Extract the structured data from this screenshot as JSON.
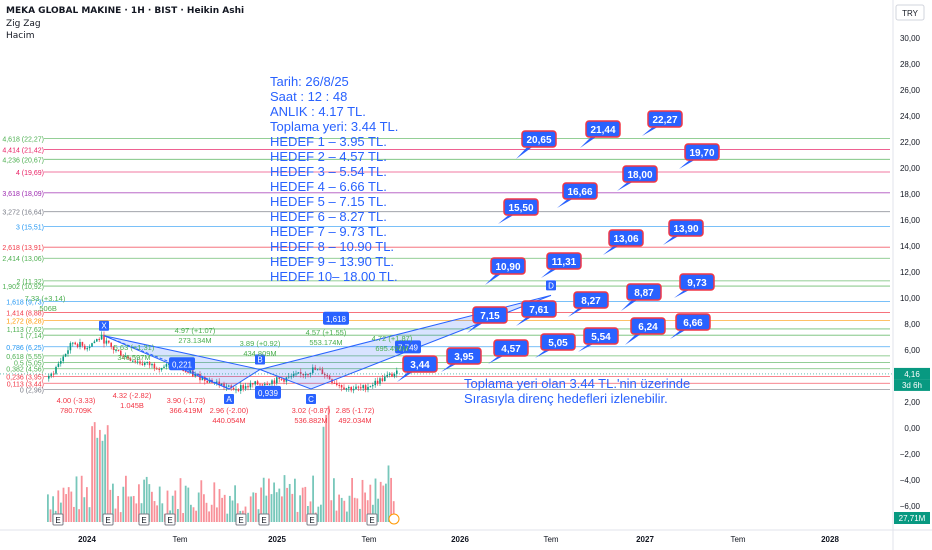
{
  "header": {
    "title": "MEKA GLOBAL MAKINE · 1H · BIST · Heikin Ashi",
    "indicator1": "Zig Zag",
    "indicator2": "Hacim",
    "currency": "TRY"
  },
  "info": {
    "lines": [
      "Tarih:    26/8/25",
      "Saat :      12 : 48",
      "ANLIK :  4.17 TL.",
      "Toplama yeri: 3.44 TL.",
      "HEDEF  1 – 3.95 TL.",
      "HEDEF  2 – 4.57 TL.",
      "HEDEF  3 – 5.54 TL.",
      "HEDEF  4 – 6.66 TL.",
      "HEDEF  5 – 7.15 TL.",
      "HEDEF  6 – 8.27 TL.",
      "HEDEF  7 – 9.73 TL.",
      "HEDEF  8 – 10.90 TL.",
      "HEDEF  9 – 13.90 TL.",
      "HEDEF 10– 18.00 TL."
    ],
    "note_line1": "Toplama yeri olan 3.44 TL.'nin üzerinde",
    "note_line2": "Sırasıyla direnç hedefleri izlenebilir."
  },
  "chart_data": {
    "type": "candlestick",
    "price_axis": {
      "ticks": [
        "30,00",
        "28,00",
        "26,00",
        "24,00",
        "22,00",
        "20,00",
        "18,00",
        "16,00",
        "14,00",
        "12,00",
        "10,00",
        "8,00",
        "6,00",
        "4,00",
        "2,00",
        "0,00",
        "−2,00",
        "−4,00",
        "−6,00"
      ],
      "values": [
        30,
        28,
        26,
        24,
        22,
        20,
        18,
        16,
        14,
        12,
        10,
        8,
        6,
        4,
        2,
        0,
        -2,
        -4,
        -6
      ],
      "current_price": "4,16",
      "countdown": "3d 6h",
      "volume_label": "27,71M"
    },
    "time_axis": {
      "labels": [
        "2024",
        "Tem",
        "2025",
        "Tem",
        "2026",
        "Tem",
        "2027",
        "Tem",
        "2028"
      ]
    },
    "fib_levels": [
      {
        "label": "4,618 (22,27)",
        "value": 22.27,
        "color": "#4caf50"
      },
      {
        "label": "4,414 (21,42)",
        "value": 21.42,
        "color": "#e91e63"
      },
      {
        "label": "4,236 (20,67)",
        "value": 20.67,
        "color": "#4caf50"
      },
      {
        "label": "4 (19,69)",
        "value": 19.69,
        "color": "#e91e63"
      },
      {
        "label": "3,618 (18,09)",
        "value": 18.09,
        "color": "#9c27b0"
      },
      {
        "label": "3,272 (16,64)",
        "value": 16.64,
        "color": "#787b86"
      },
      {
        "label": "3 (15,51)",
        "value": 15.51,
        "color": "#2196f3"
      },
      {
        "label": "2,618 (13,91)",
        "value": 13.91,
        "color": "#f23645"
      },
      {
        "label": "2,414 (13,06)",
        "value": 13.06,
        "color": "#4caf50"
      },
      {
        "label": "2 (11,32)",
        "value": 11.32,
        "color": "#4caf50"
      },
      {
        "label": "1,902 (10,92)",
        "value": 10.92,
        "color": "#4caf50"
      },
      {
        "label": "1,618 (9,73)",
        "value": 9.73,
        "color": "#2196f3"
      },
      {
        "label": "1,414 (8,88)",
        "value": 8.88,
        "color": "#f23645"
      },
      {
        "label": "1,272 (8,28)",
        "value": 8.28,
        "color": "#ff9800"
      },
      {
        "label": "1,113 (7,62)",
        "value": 7.62,
        "color": "#4caf50"
      },
      {
        "label": "1 (7,14)",
        "value": 7.14,
        "color": "#4caf50"
      },
      {
        "label": "0,786 (6,25)",
        "value": 6.25,
        "color": "#2196f3"
      },
      {
        "label": "0,618 (5,55)",
        "value": 5.55,
        "color": "#4caf50"
      },
      {
        "label": "0,5 (5,05)",
        "value": 5.05,
        "color": "#4caf50"
      },
      {
        "label": "0,382 (4,56)",
        "value": 4.56,
        "color": "#4caf50"
      },
      {
        "label": "0,236 (3,95)",
        "value": 3.95,
        "color": "#f23645"
      },
      {
        "label": "0,113 (3,44)",
        "value": 3.44,
        "color": "#f23645"
      },
      {
        "label": "0 (2,96)",
        "value": 2.96,
        "color": "#787b86"
      }
    ],
    "target_tags": [
      "3,44",
      "3,95",
      "4,57",
      "5,05",
      "5,54",
      "6,24",
      "6,66",
      "7,15",
      "7,61",
      "8,27",
      "8,87",
      "9,73",
      "10,90",
      "11,31",
      "13,06",
      "13,90",
      "15,50",
      "16,66",
      "18,00",
      "19,70",
      "20,65",
      "21,44",
      "22,27"
    ],
    "pattern_labels": [
      "X",
      "A",
      "B",
      "C",
      "D"
    ],
    "pattern_values": [
      "0,221",
      "0,939",
      "1,618",
      "7,749"
    ],
    "zigzag_labels": [
      {
        "line1": "4.00 (-3.33)",
        "line2": "780.709K",
        "color": "#f23645"
      },
      {
        "line1": "4.32 (-2.82)",
        "line2": "1.045B",
        "color": "#f23645"
      },
      {
        "line1": "3.90 (-1.73)",
        "line2": "366.419M",
        "color": "#f23645"
      },
      {
        "line1": "2.96 (-2.00)",
        "line2": "440.054M",
        "color": "#f23645"
      },
      {
        "line1": "3.02 (-0.87)",
        "line2": "536.882M",
        "color": "#f23645"
      },
      {
        "line1": "2.85 (-1.72)",
        "line2": "492.034M",
        "color": "#f23645"
      },
      {
        "line1": "5.63 (+1.31)",
        "line2": "346.597M",
        "color": "#4caf50"
      },
      {
        "line1": "4.97 (+1.07)",
        "line2": "273.134M",
        "color": "#4caf50"
      },
      {
        "line1": "3.89 (+0.92)",
        "line2": "434.809M",
        "color": "#4caf50"
      },
      {
        "line1": "4.57 (+1.55)",
        "line2": "553.174M",
        "color": "#4caf50"
      },
      {
        "line1": "4.72 (+1.87)",
        "line2": "695.496M",
        "color": "#4caf50"
      },
      {
        "line1": "7.33 (+3.14)",
        "line2": "...506B",
        "color": "#4caf50"
      }
    ],
    "colors": {
      "bull": "#089981",
      "bear": "#f23645",
      "tag_bg": "#2962ff",
      "tag_border": "#f23645",
      "info": "#2962ff"
    }
  }
}
